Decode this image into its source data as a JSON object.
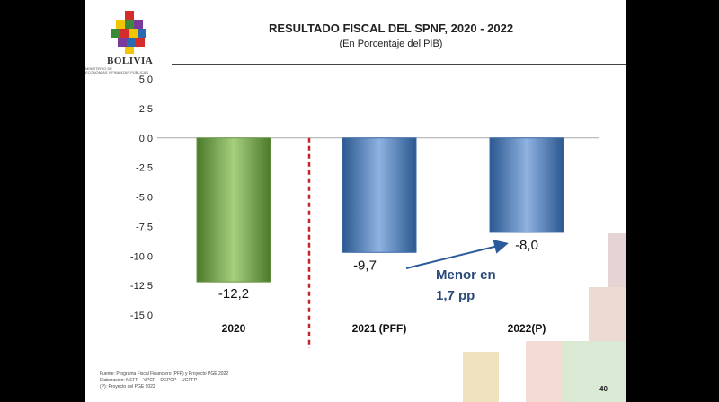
{
  "header": {
    "brand": "BOLIVIA",
    "ministry_line1": "MINISTERIO DE",
    "ministry_line2": "ECONOMÍAS Y FINANZAS PÚBLICAS",
    "title": "RESULTADO  FISCAL DEL  SPNF, 2020 - 2022",
    "subtitle": "(En Porcentaje del PIB)"
  },
  "chart_data": {
    "type": "bar",
    "title": "RESULTADO  FISCAL DEL  SPNF, 2020 - 2022",
    "subtitle": "(En Porcentaje del PIB)",
    "categories": [
      "2020",
      "2021 (PFF)",
      "2022(P)"
    ],
    "values": [
      -12.2,
      -9.7,
      -8.0
    ],
    "data_labels": [
      "-12,2",
      "-9,7",
      "-8,0"
    ],
    "bar_colors": [
      "#6a9a45",
      "#3a6aa8",
      "#3a6aa8"
    ],
    "ylim": [
      -15.0,
      5.0
    ],
    "yticks": [
      5.0,
      2.5,
      0.0,
      -2.5,
      -5.0,
      -7.5,
      -10.0,
      -12.5,
      -15.0
    ],
    "ytick_labels": [
      "5,0",
      "2,5",
      "0,0",
      "-2,5",
      "-5,0",
      "-7,5",
      "-10,0",
      "-12,5",
      "-15,0"
    ],
    "xlabel": "",
    "ylabel": "",
    "grid": false,
    "divider_color": "#c0262d",
    "annotation": {
      "line1": "Menor en",
      "line2": "1,7 pp",
      "color": "#2a4a7a"
    }
  },
  "footnotes": [
    "Fuente: Programa Fiscal Financiero (PFF) y Proyecto PGE 2022",
    "Elaboración: MEFP – VPCF – DGPGP – UGPFP",
    "(P): Proyecto del PGE 2022"
  ],
  "page_number": "40"
}
